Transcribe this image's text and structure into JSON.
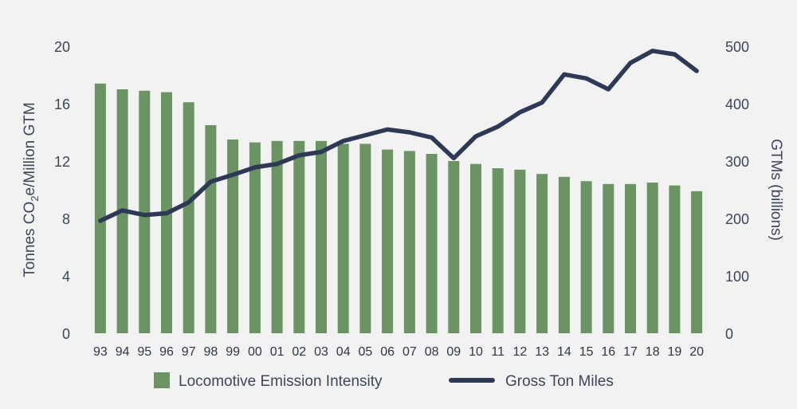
{
  "chart_data": {
    "type": "bar",
    "categories": [
      "93",
      "94",
      "95",
      "96",
      "97",
      "98",
      "99",
      "00",
      "01",
      "02",
      "03",
      "04",
      "05",
      "06",
      "07",
      "08",
      "09",
      "10",
      "11",
      "12",
      "13",
      "14",
      "15",
      "16",
      "17",
      "18",
      "19",
      "20"
    ],
    "series": [
      {
        "name": "Locomotive Emission Intensity",
        "type": "bar",
        "axis": "left",
        "color": "#6b9363",
        "values": [
          17.4,
          17.0,
          16.9,
          16.8,
          16.1,
          14.5,
          13.5,
          13.3,
          13.4,
          13.4,
          13.4,
          13.2,
          13.2,
          12.8,
          12.7,
          12.5,
          12.0,
          11.8,
          11.5,
          11.4,
          11.1,
          10.9,
          10.6,
          10.4,
          10.4,
          10.5,
          10.3,
          9.9
        ]
      },
      {
        "name": "Gross Ton Miles",
        "type": "line",
        "axis": "right",
        "color": "#2e3a55",
        "values": [
          196,
          214,
          206,
          209,
          228,
          264,
          276,
          289,
          295,
          310,
          316,
          335,
          345,
          355,
          350,
          341,
          305,
          343,
          360,
          385,
          402,
          451,
          444,
          425,
          471,
          492,
          486,
          457
        ]
      }
    ],
    "ylabel_left": {
      "pre": "Tonnes CO",
      "sub": "2",
      "post": "e/Million GTM"
    },
    "ylabel_right": "GTMs (billions)",
    "ylim_left": [
      0,
      20
    ],
    "ylim_right": [
      0,
      500
    ],
    "yticks_left": [
      0,
      4,
      8,
      12,
      16,
      20
    ],
    "yticks_right": [
      0,
      100,
      200,
      300,
      400,
      500
    ],
    "grid": false,
    "legend_position": "bottom"
  }
}
